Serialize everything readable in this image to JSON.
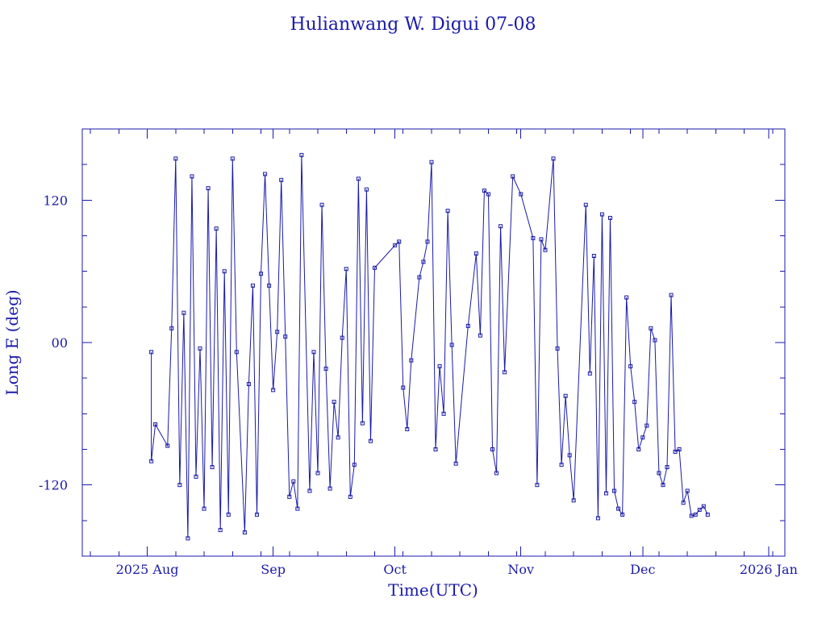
{
  "chart_data": {
    "type": "line",
    "title": "Hulianwang W. Digui 07-08",
    "xlabel": "Time(UTC)",
    "ylabel": "Long E (deg)",
    "xlim": [
      "2025-07-16",
      "2026-01-05"
    ],
    "ylim": [
      -180,
      180
    ],
    "x_ticks": [
      {
        "date": "2025-08-01",
        "label": "2025 Aug"
      },
      {
        "date": "2025-09-01",
        "label": "Sep"
      },
      {
        "date": "2025-10-01",
        "label": "Oct"
      },
      {
        "date": "2025-11-01",
        "label": "Nov"
      },
      {
        "date": "2025-12-01",
        "label": "Dec"
      },
      {
        "date": "2026-01-01",
        "label": "2026 Jan"
      }
    ],
    "y_ticks": [
      {
        "value": -120,
        "label": "-120"
      },
      {
        "value": 0,
        "label": "00"
      },
      {
        "value": 120,
        "label": "120"
      }
    ],
    "grid": false,
    "marker": "square",
    "line_color": "#1a1aa8",
    "series": [
      {
        "x": [
          "2025-08-02",
          "2025-08-02",
          "2025-08-03",
          "2025-08-06",
          "2025-08-07",
          "2025-08-08",
          "2025-08-09",
          "2025-08-10",
          "2025-08-11",
          "2025-08-12",
          "2025-08-13",
          "2025-08-14",
          "2025-08-15",
          "2025-08-16",
          "2025-08-17",
          "2025-08-18",
          "2025-08-19",
          "2025-08-20",
          "2025-08-21",
          "2025-08-22",
          "2025-08-23",
          "2025-08-25",
          "2025-08-26",
          "2025-08-27",
          "2025-08-28",
          "2025-08-29",
          "2025-08-30",
          "2025-08-31",
          "2025-09-01",
          "2025-09-02",
          "2025-09-03",
          "2025-09-04",
          "2025-09-05",
          "2025-09-06",
          "2025-09-07",
          "2025-09-08",
          "2025-09-10",
          "2025-09-11",
          "2025-09-12",
          "2025-09-13",
          "2025-09-14",
          "2025-09-15",
          "2025-09-16",
          "2025-09-17",
          "2025-09-18",
          "2025-09-19",
          "2025-09-20",
          "2025-09-21",
          "2025-09-22",
          "2025-09-23",
          "2025-09-24",
          "2025-09-25",
          "2025-09-26",
          "2025-10-01",
          "2025-10-02",
          "2025-10-03",
          "2025-10-04",
          "2025-10-05",
          "2025-10-07",
          "2025-10-08",
          "2025-10-09",
          "2025-10-10",
          "2025-10-11",
          "2025-10-12",
          "2025-10-13",
          "2025-10-14",
          "2025-10-15",
          "2025-10-16",
          "2025-10-19",
          "2025-10-21",
          "2025-10-22",
          "2025-10-23",
          "2025-10-24",
          "2025-10-25",
          "2025-10-26",
          "2025-10-27",
          "2025-10-28",
          "2025-10-30",
          "2025-11-01",
          "2025-11-04",
          "2025-11-05",
          "2025-11-06",
          "2025-11-07",
          "2025-11-09",
          "2025-11-10",
          "2025-11-11",
          "2025-11-12",
          "2025-11-13",
          "2025-11-14",
          "2025-11-17",
          "2025-11-18",
          "2025-11-19",
          "2025-11-20",
          "2025-11-21",
          "2025-11-22",
          "2025-11-23",
          "2025-11-24",
          "2025-11-25",
          "2025-11-26",
          "2025-11-27",
          "2025-11-28",
          "2025-11-29",
          "2025-11-30",
          "2025-12-01",
          "2025-12-02",
          "2025-12-03",
          "2025-12-04",
          "2025-12-05",
          "2025-12-06",
          "2025-12-07",
          "2025-12-08",
          "2025-12-09",
          "2025-12-10",
          "2025-12-11",
          "2025-12-12",
          "2025-12-13",
          "2025-12-14",
          "2025-12-15",
          "2025-12-16",
          "2025-12-17"
        ],
        "y": [
          -8,
          -100,
          -69,
          -87,
          12,
          155,
          -120,
          25,
          -165,
          140,
          -113,
          -5,
          -140,
          130,
          -105,
          96,
          -158,
          60,
          -145,
          155,
          -8,
          -160,
          -35,
          48,
          -145,
          58,
          142,
          48,
          -40,
          9,
          137,
          5,
          -130,
          -117,
          -140,
          158,
          -125,
          -8,
          -110,
          116,
          -22,
          -123,
          -50,
          -80,
          4,
          62,
          -130,
          -103,
          138,
          -68,
          129,
          -83,
          63,
          82,
          85,
          -38,
          -73,
          -15,
          55,
          68,
          85,
          152,
          -90,
          -20,
          -60,
          111,
          -2,
          -102,
          14,
          75,
          6,
          128,
          125,
          -90,
          -110,
          98,
          -25,
          140,
          125,
          88,
          -120,
          87,
          78,
          155,
          -5,
          -103,
          -45,
          -95,
          -133,
          116,
          -26,
          73,
          -148,
          108,
          -127,
          105,
          -125,
          -140,
          -145,
          38,
          -20,
          -50,
          -90,
          -80,
          -70,
          12,
          2,
          -110,
          -120,
          -105,
          40,
          -92,
          -90,
          -135,
          -125,
          -146,
          -145,
          -141,
          -138,
          -145
        ]
      }
    ]
  }
}
